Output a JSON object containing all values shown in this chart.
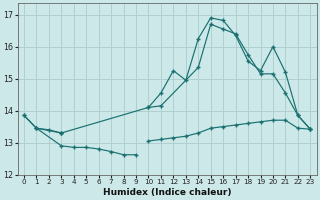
{
  "xlabel": "Humidex (Indice chaleur)",
  "background_color": "#cce8e8",
  "grid_color": "#b0d0d0",
  "line_color": "#1a7070",
  "xlim": [
    -0.5,
    23.5
  ],
  "ylim": [
    12.0,
    17.35
  ],
  "yticks": [
    12,
    13,
    14,
    15,
    16,
    17
  ],
  "xticks": [
    0,
    1,
    2,
    3,
    4,
    5,
    6,
    7,
    8,
    9,
    10,
    11,
    12,
    13,
    14,
    15,
    16,
    17,
    18,
    19,
    20,
    21,
    22,
    23
  ],
  "seg_flat_x": [
    0,
    1,
    2,
    3,
    10,
    11,
    12,
    13,
    14,
    15,
    16,
    17,
    18,
    19,
    20,
    21,
    22,
    23
  ],
  "seg_flat_y": [
    13.85,
    13.45,
    13.4,
    13.3,
    13.05,
    13.1,
    13.15,
    13.2,
    13.3,
    13.45,
    13.5,
    13.55,
    13.6,
    13.65,
    13.7,
    13.7,
    13.45,
    13.42
  ],
  "seg_peak_x": [
    3,
    10,
    11,
    12,
    13,
    14,
    15,
    16,
    17,
    18,
    19,
    20,
    21,
    22,
    23
  ],
  "seg_peak_y": [
    13.3,
    14.1,
    14.55,
    15.25,
    14.95,
    16.25,
    16.9,
    16.82,
    16.35,
    15.55,
    15.25,
    16.0,
    15.2,
    13.85,
    13.42
  ],
  "seg_low_x": [
    1,
    3,
    4,
    5,
    6,
    7,
    8,
    9
  ],
  "seg_low_y": [
    13.45,
    12.9,
    12.85,
    12.85,
    12.8,
    12.72,
    12.62,
    12.62
  ],
  "seg_mid_x": [
    0,
    1,
    3,
    10,
    11,
    14,
    15,
    16,
    17,
    18,
    19,
    20,
    21,
    22,
    23
  ],
  "seg_mid_y": [
    13.85,
    13.45,
    13.3,
    14.1,
    14.15,
    15.35,
    16.7,
    16.55,
    16.4,
    15.75,
    15.15,
    15.15,
    14.55,
    13.85,
    13.42
  ]
}
